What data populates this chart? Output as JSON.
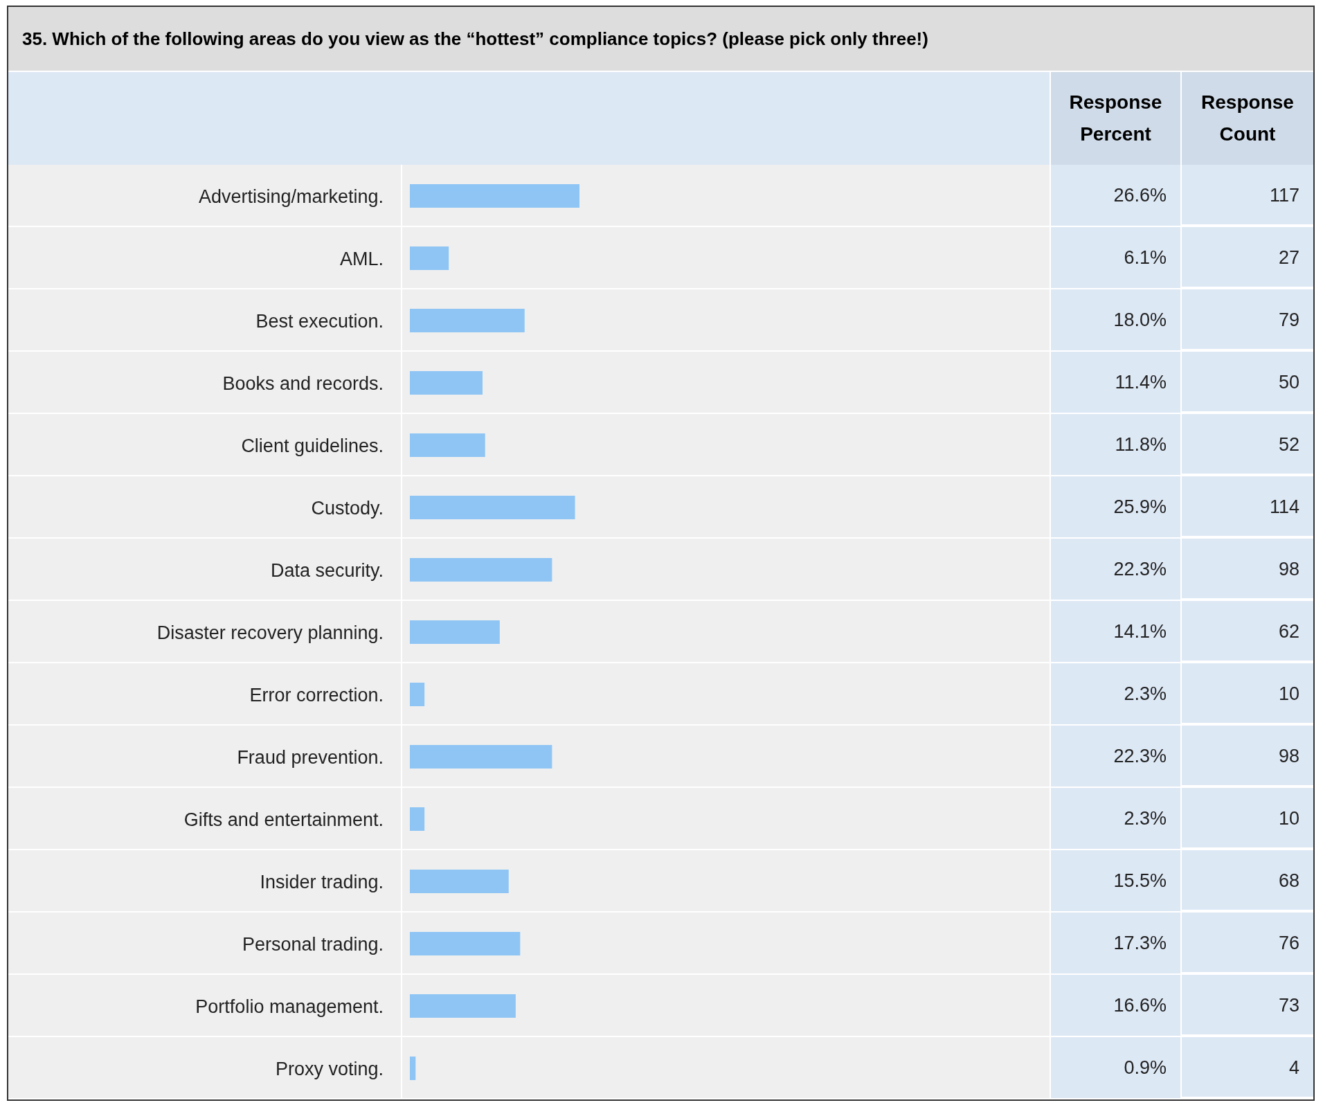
{
  "chart_data": {
    "type": "bar",
    "orientation": "horizontal",
    "title": "35. Which of the following areas do you view as the “hottest” compliance topics? (please pick only three!)",
    "categories": [
      "Advertising/marketing.",
      "AML.",
      "Best execution.",
      "Books and records.",
      "Client guidelines.",
      "Custody.",
      "Data security.",
      "Disaster recovery planning.",
      "Error correction.",
      "Fraud prevention.",
      "Gifts and entertainment.",
      "Insider trading.",
      "Personal trading.",
      "Portfolio management.",
      "Proxy voting."
    ],
    "series": [
      {
        "name": "Response Percent",
        "color": "#8ec5f5",
        "values": [
          26.6,
          6.1,
          18.0,
          11.4,
          11.8,
          25.9,
          22.3,
          14.1,
          2.3,
          22.3,
          2.3,
          15.5,
          17.3,
          16.6,
          0.9
        ],
        "value_labels": [
          "26.6%",
          "6.1%",
          "18.0%",
          "11.4%",
          "11.8%",
          "25.9%",
          "22.3%",
          "14.1%",
          "2.3%",
          "22.3%",
          "2.3%",
          "15.5%",
          "17.3%",
          "16.6%",
          "0.9%"
        ]
      }
    ],
    "annotations": [
      "Response Count",
      "117",
      "27",
      "79",
      "50",
      "52",
      "114",
      "98",
      "62",
      "10",
      "98",
      "10",
      "68",
      "76",
      "73",
      "4"
    ],
    "xlim": [
      0,
      100
    ],
    "tick_labels": "y"
  }
}
